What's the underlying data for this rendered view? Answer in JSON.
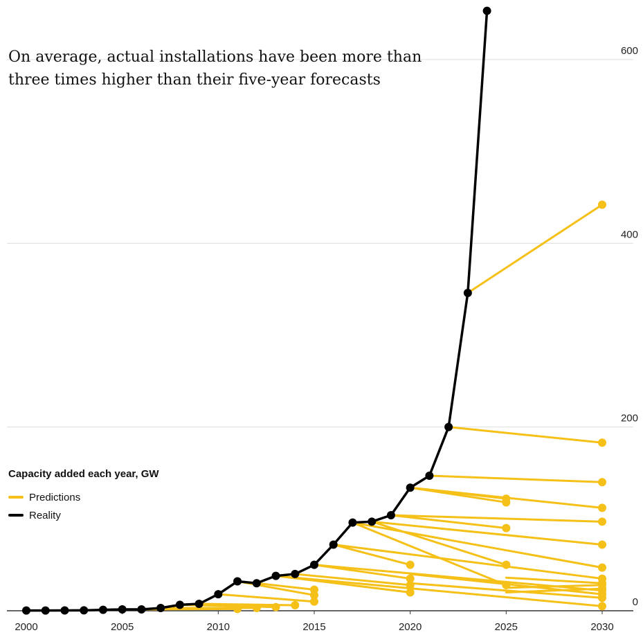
{
  "chart_data": {
    "type": "line",
    "title": "On average, actual installations have been more than three times higher than their five-year forecasts",
    "legend": {
      "title": "Capacity added each year, GW",
      "placement": "bottom-left",
      "items": [
        {
          "label": "Predictions",
          "color": "#F5C018"
        },
        {
          "label": "Reality",
          "color": "#000000"
        }
      ]
    },
    "x_axis": {
      "range": [
        2000,
        2030
      ],
      "ticks": [
        2000,
        2005,
        2010,
        2015,
        2020,
        2025,
        2030
      ]
    },
    "y_axis": {
      "range": [
        0,
        660
      ],
      "ticks": [
        0,
        200,
        400,
        600
      ],
      "position": "right",
      "gridlines": true
    },
    "reality": {
      "name": "Reality",
      "color": "#000000",
      "x": [
        2000,
        2001,
        2002,
        2003,
        2004,
        2005,
        2006,
        2007,
        2008,
        2009,
        2010,
        2011,
        2012,
        2013,
        2014,
        2015,
        2016,
        2017,
        2018,
        2019,
        2020,
        2021,
        2022,
        2023,
        2024
      ],
      "y": [
        0.3,
        0.3,
        0.4,
        0.5,
        1,
        1.5,
        1.5,
        3,
        6.5,
        7.5,
        18,
        32,
        30,
        38,
        40,
        50,
        72,
        96,
        97,
        104,
        134,
        147,
        200,
        346,
        653
      ]
    },
    "predictions": [
      {
        "x": [
          2006,
          2011
        ],
        "y": [
          1.5,
          2
        ]
      },
      {
        "x": [
          2007,
          2012
        ],
        "y": [
          3,
          3
        ]
      },
      {
        "x": [
          2008,
          2013
        ],
        "y": [
          6.5,
          4
        ]
      },
      {
        "x": [
          2009,
          2014
        ],
        "y": [
          7.5,
          6
        ]
      },
      {
        "x": [
          2010,
          2015
        ],
        "y": [
          18,
          10
        ]
      },
      {
        "x": [
          2011,
          2015
        ],
        "y": [
          32,
          17
        ]
      },
      {
        "x": [
          2012,
          2015
        ],
        "y": [
          30,
          23
        ]
      },
      {
        "x": [
          2013,
          2020
        ],
        "y": [
          38,
          20
        ]
      },
      {
        "x": [
          2014,
          2020
        ],
        "y": [
          40,
          28
        ]
      },
      {
        "x": [
          2015,
          2020
        ],
        "y": [
          50,
          35
        ]
      },
      {
        "x": [
          2016,
          2020
        ],
        "y": [
          72,
          50
        ]
      },
      {
        "x": [
          2017,
          2025
        ],
        "y": [
          96,
          28
        ]
      },
      {
        "x": [
          2018,
          2025
        ],
        "y": [
          97,
          50
        ]
      },
      {
        "x": [
          2019,
          2025
        ],
        "y": [
          104,
          90
        ]
      },
      {
        "x": [
          2020,
          2025
        ],
        "y": [
          134,
          118
        ]
      },
      {
        "x": [
          2013,
          2030
        ],
        "y": [
          38,
          5
        ]
      },
      {
        "x": [
          2015,
          2030
        ],
        "y": [
          50,
          22
        ]
      },
      {
        "x": [
          2016,
          2030
        ],
        "y": [
          72,
          35
        ]
      },
      {
        "x": [
          2017,
          2030
        ],
        "y": [
          96,
          47
        ]
      },
      {
        "x": [
          2018,
          2030
        ],
        "y": [
          97,
          72
        ]
      },
      {
        "x": [
          2019,
          2030
        ],
        "y": [
          104,
          97
        ]
      },
      {
        "x": [
          2020,
          2030
        ],
        "y": [
          134,
          112
        ]
      },
      {
        "x": [
          2020,
          2025
        ],
        "y": [
          134,
          122
        ]
      },
      {
        "x": [
          2021,
          2030
        ],
        "y": [
          147,
          140
        ]
      },
      {
        "x": [
          2022,
          2030
        ],
        "y": [
          200,
          183
        ]
      },
      {
        "x": [
          2023,
          2030
        ],
        "y": [
          346,
          442
        ]
      },
      {
        "x": [
          2020,
          2030
        ],
        "y": [
          40,
          18
        ]
      },
      {
        "x": [
          2020,
          2030
        ],
        "y": [
          30,
          14
        ]
      },
      {
        "x": [
          2025,
          2030
        ],
        "y": [
          25,
          28
        ]
      },
      {
        "x": [
          2025,
          2030
        ],
        "y": [
          20,
          24
        ]
      },
      {
        "x": [
          2025,
          2030
        ],
        "y": [
          36,
          30
        ]
      }
    ]
  }
}
